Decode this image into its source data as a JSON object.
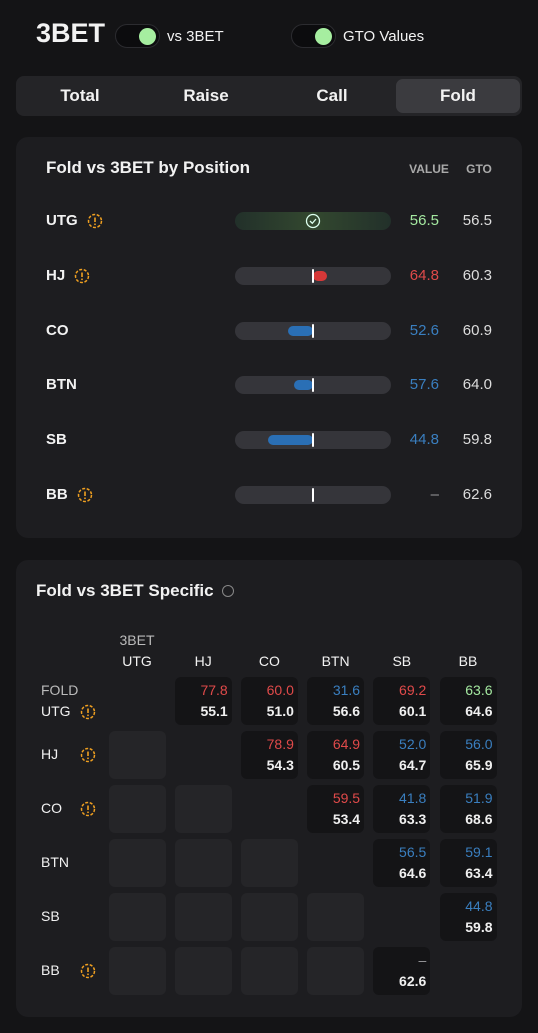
{
  "header": {
    "title": "3BET",
    "toggles": [
      {
        "label": "vs 3BET",
        "on": true
      },
      {
        "label": "GTO Values",
        "on": true
      }
    ]
  },
  "tabs": [
    {
      "label": "Total",
      "selected": false
    },
    {
      "label": "Raise",
      "selected": false
    },
    {
      "label": "Call",
      "selected": false
    },
    {
      "label": "Fold",
      "selected": true
    }
  ],
  "position_panel": {
    "title": "Fold vs 3BET by Position",
    "columns": [
      "VALUE",
      "GTO"
    ],
    "rows": [
      {
        "position": "UTG",
        "warning": true,
        "value": "56.5",
        "gto": "56.5"
      },
      {
        "position": "HJ",
        "warning": true,
        "value": "64.8",
        "gto": "60.3"
      },
      {
        "position": "CO",
        "warning": false,
        "value": "52.6",
        "gto": "60.9"
      },
      {
        "position": "BTN",
        "warning": false,
        "value": "57.6",
        "gto": "64.0"
      },
      {
        "position": "SB",
        "warning": false,
        "value": "44.8",
        "gto": "59.8"
      },
      {
        "position": "BB",
        "warning": true,
        "value": "–",
        "gto": "62.6"
      }
    ]
  },
  "matrix": {
    "title": "Fold vs 3BET Specific",
    "column_caption": "3BET",
    "row_caption": "FOLD",
    "columns": [
      "UTG",
      "HJ",
      "CO",
      "BTN",
      "SB",
      "BB"
    ],
    "rows": [
      {
        "position": "UTG",
        "warning": true,
        "cells": [
          null,
          {
            "value": "77.8",
            "gto": "55.1"
          },
          {
            "value": "60.0",
            "gto": "51.0"
          },
          {
            "value": "31.6",
            "gto": "56.6"
          },
          {
            "value": "69.2",
            "gto": "60.1"
          },
          {
            "value": "63.6",
            "gto": "64.6"
          }
        ]
      },
      {
        "position": "HJ",
        "warning": true,
        "cells": [
          null,
          null,
          {
            "value": "78.9",
            "gto": "54.3"
          },
          {
            "value": "64.9",
            "gto": "60.5"
          },
          {
            "value": "52.0",
            "gto": "64.7"
          },
          {
            "value": "56.0",
            "gto": "65.9"
          }
        ]
      },
      {
        "position": "CO",
        "warning": true,
        "cells": [
          null,
          null,
          null,
          {
            "value": "59.5",
            "gto": "53.4"
          },
          {
            "value": "41.8",
            "gto": "63.3"
          },
          {
            "value": "51.9",
            "gto": "68.6"
          }
        ]
      },
      {
        "position": "BTN",
        "warning": false,
        "cells": [
          null,
          null,
          null,
          null,
          {
            "value": "56.5",
            "gto": "64.6"
          },
          {
            "value": "59.1",
            "gto": "63.4"
          }
        ]
      },
      {
        "position": "SB",
        "warning": false,
        "cells": [
          null,
          null,
          null,
          null,
          null,
          {
            "value": "44.8",
            "gto": "59.8"
          }
        ]
      },
      {
        "position": "BB",
        "warning": true,
        "cells": [
          null,
          null,
          null,
          null,
          {
            "value": "–",
            "gto": "62.6"
          },
          null
        ]
      }
    ]
  }
}
